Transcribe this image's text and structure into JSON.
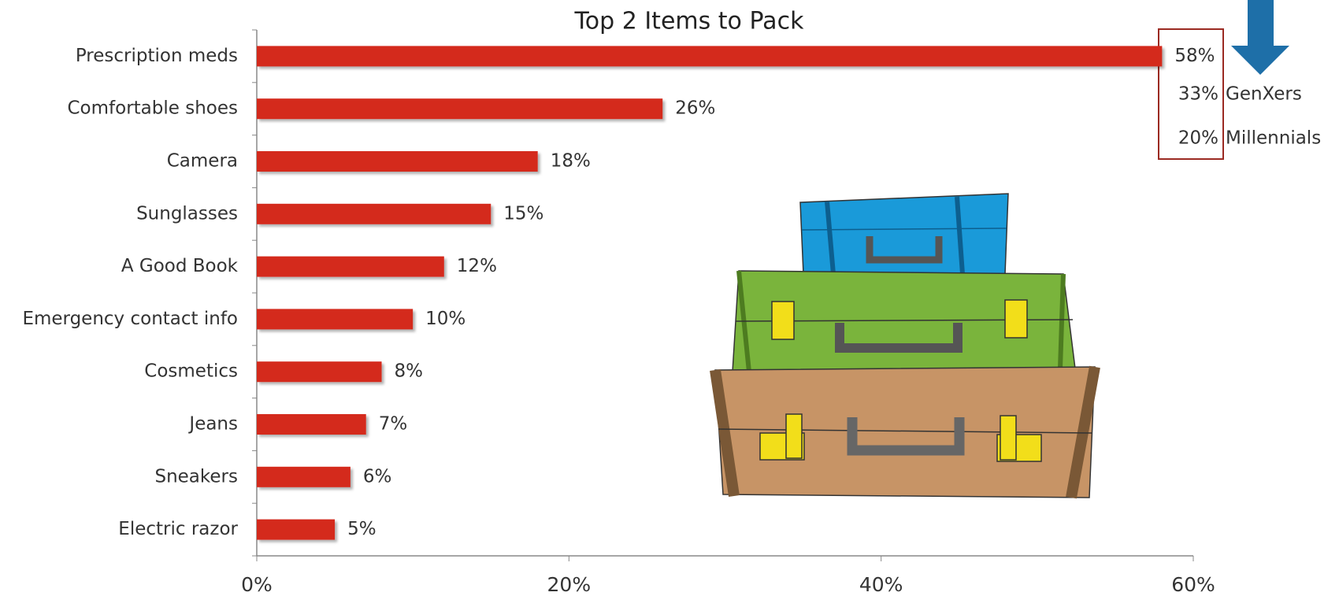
{
  "chart_data": {
    "type": "bar",
    "orientation": "horizontal",
    "title": "Top 2 Items to Pack",
    "categories": [
      "Prescription meds",
      "Comfortable shoes",
      "Camera",
      "Sunglasses",
      "A Good Book",
      "Emergency contact info",
      "Cosmetics",
      "Jeans",
      "Sneakers",
      "Electric razor"
    ],
    "values": [
      58,
      26,
      18,
      15,
      12,
      10,
      8,
      7,
      6,
      5
    ],
    "value_labels": [
      "58%",
      "26%",
      "18%",
      "15%",
      "12%",
      "10%",
      "8%",
      "7%",
      "6%",
      "5%"
    ],
    "color": "#d42a1e",
    "xlim": [
      0,
      60
    ],
    "xticks": [
      {
        "value": 0,
        "label": "0%"
      },
      {
        "value": 20,
        "label": "20%"
      },
      {
        "value": 40,
        "label": "40%"
      },
      {
        "value": 60,
        "label": "60%"
      }
    ],
    "annotations": [
      {
        "label": "33%",
        "text": "GenXers"
      },
      {
        "label": "20%",
        "text": "Millennials"
      }
    ]
  }
}
